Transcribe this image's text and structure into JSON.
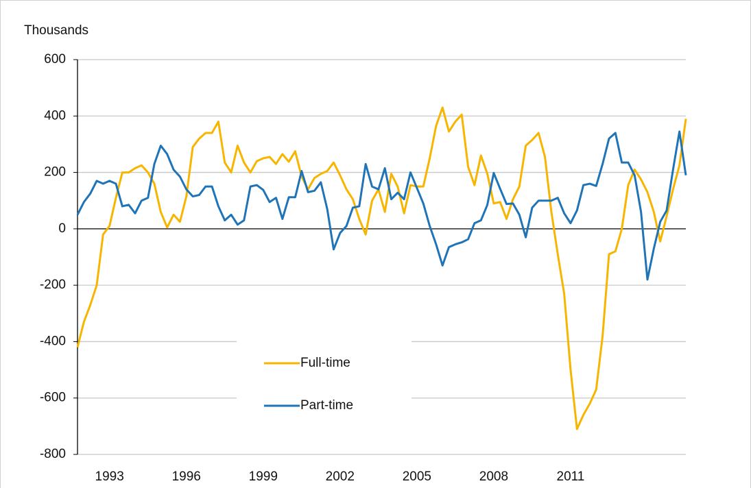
{
  "chart_data": {
    "type": "line",
    "title": "Thousands",
    "x": [
      1991.75,
      1992,
      1992.25,
      1992.5,
      1992.75,
      1993,
      1993.25,
      1993.5,
      1993.75,
      1994,
      1994.25,
      1994.5,
      1994.75,
      1995,
      1995.25,
      1995.5,
      1995.75,
      1996,
      1996.25,
      1996.5,
      1996.75,
      1997,
      1997.25,
      1997.5,
      1997.75,
      1998,
      1998.25,
      1998.5,
      1998.75,
      1999,
      1999.25,
      1999.5,
      1999.75,
      2000,
      2000.25,
      2000.5,
      2000.75,
      2001,
      2001.25,
      2001.5,
      2001.75,
      2002,
      2002.25,
      2002.5,
      2002.75,
      2003,
      2003.25,
      2003.5,
      2003.75,
      2004,
      2004.25,
      2004.5,
      2004.75,
      2005,
      2005.25,
      2005.5,
      2005.75,
      2006,
      2006.25,
      2006.5,
      2006.75,
      2007,
      2007.25,
      2007.5,
      2007.75,
      2008,
      2008.25,
      2008.5,
      2008.75,
      2009,
      2009.25,
      2009.5,
      2009.75,
      2010,
      2010.25,
      2010.5,
      2010.75,
      2011,
      2011.25,
      2011.5,
      2011.75,
      2012,
      2012.25,
      2012.5,
      2012.75,
      2013,
      2013.25,
      2013.5,
      2013.75,
      2014,
      2014.25,
      2014.5,
      2014.75,
      2015,
      2015.25,
      2015.5
    ],
    "series": [
      {
        "name": "Full-time",
        "color": "#f7b500",
        "values": [
          -420,
          -330,
          -270,
          -200,
          -20,
          10,
          110,
          200,
          200,
          215,
          225,
          200,
          160,
          60,
          5,
          50,
          25,
          115,
          290,
          320,
          340,
          340,
          380,
          235,
          200,
          295,
          235,
          200,
          240,
          250,
          255,
          230,
          265,
          238,
          275,
          185,
          140,
          180,
          195,
          205,
          235,
          190,
          140,
          105,
          35,
          -20,
          100,
          140,
          60,
          195,
          150,
          55,
          155,
          150,
          150,
          250,
          365,
          430,
          345,
          380,
          405,
          220,
          155,
          260,
          195,
          90,
          95,
          35,
          105,
          150,
          295,
          315,
          340,
          255,
          60,
          -90,
          -230,
          -500,
          -710,
          -660,
          -620,
          -570,
          -380,
          -90,
          -80,
          0,
          155,
          210,
          175,
          130,
          60,
          -45,
          45,
          140,
          225,
          390
        ]
      },
      {
        "name": "Part-time",
        "color": "#1f73b7",
        "values": [
          50,
          95,
          125,
          170,
          160,
          170,
          160,
          80,
          85,
          55,
          100,
          110,
          230,
          295,
          265,
          210,
          185,
          140,
          115,
          120,
          150,
          150,
          80,
          30,
          50,
          15,
          30,
          150,
          155,
          138,
          95,
          110,
          35,
          112,
          112,
          205,
          130,
          135,
          165,
          70,
          -73,
          -15,
          10,
          75,
          80,
          230,
          150,
          140,
          215,
          105,
          128,
          105,
          200,
          145,
          90,
          10,
          -55,
          -130,
          -65,
          -55,
          -48,
          -37,
          20,
          30,
          85,
          198,
          142,
          88,
          90,
          50,
          -30,
          75,
          100,
          100,
          100,
          110,
          55,
          20,
          65,
          155,
          160,
          152,
          230,
          320,
          340,
          235,
          235,
          190,
          60,
          -180,
          -70,
          25,
          65,
          210,
          345,
          190
        ]
      }
    ],
    "xlim": [
      1991.75,
      2015.5
    ],
    "xticks": [
      1993,
      1996,
      1999,
      2002,
      2005,
      2008,
      2011
    ],
    "ylim": [
      -800,
      600
    ],
    "yticks": [
      600,
      400,
      200,
      0,
      -200,
      -400,
      -600,
      -800
    ],
    "grid": true,
    "legend": "bottom-center"
  }
}
